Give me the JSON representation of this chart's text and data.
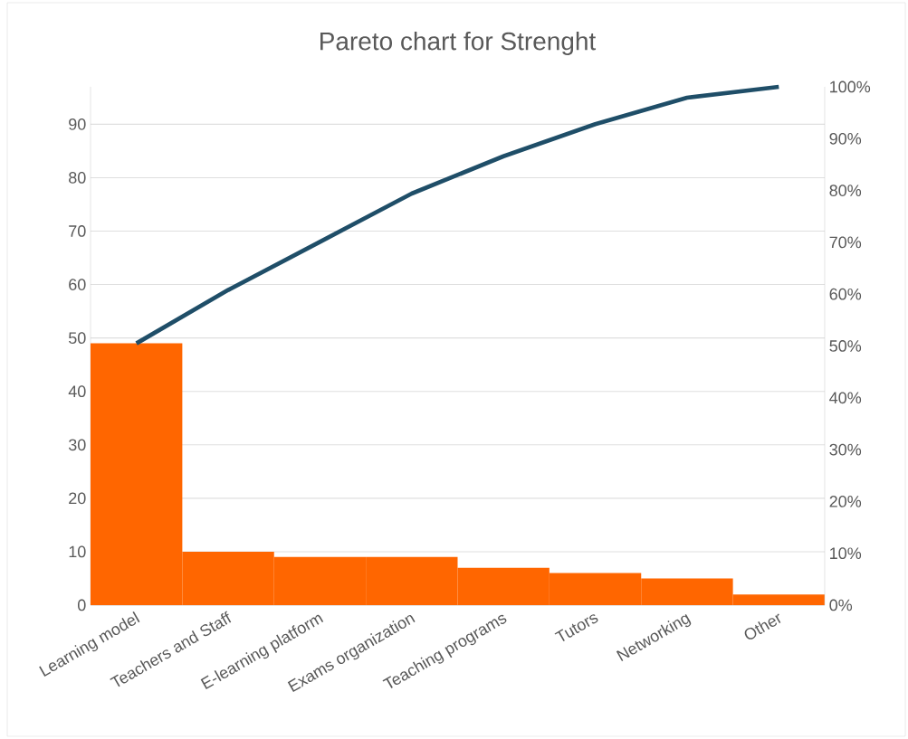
{
  "chart_data": {
    "type": "bar",
    "title": "Pareto chart for Strenght",
    "categories": [
      "Learning model",
      "Teachers and Staff",
      "E-learning platform",
      "Exams organization",
      "Teaching programs",
      "Tutors",
      "Networking",
      "Other"
    ],
    "series": [
      {
        "color": "#ff6600",
        "values": [
          49,
          10,
          9,
          9,
          7,
          6,
          5,
          2
        ]
      },
      {
        "type": "line",
        "axis": "y2",
        "color": "#1f4e68",
        "values": [
          50.5,
          60.8,
          70.1,
          79.4,
          86.6,
          92.8,
          97.9,
          100
        ]
      }
    ],
    "ylim": [
      0,
      97
    ],
    "yticks": [
      0,
      10,
      20,
      30,
      40,
      50,
      60,
      70,
      80,
      90
    ],
    "y2lim": [
      0,
      100
    ],
    "y2ticks": [
      {
        "value": 0,
        "label": "0%"
      },
      {
        "value": 10,
        "label": "10%"
      },
      {
        "value": 20,
        "label": "20%"
      },
      {
        "value": 30,
        "label": "30%"
      },
      {
        "value": 40,
        "label": "40%"
      },
      {
        "value": 50,
        "label": "50%"
      },
      {
        "value": 60,
        "label": "60%"
      },
      {
        "value": 70,
        "label": "70%"
      },
      {
        "value": 80,
        "label": "80%"
      },
      {
        "value": 90,
        "label": "90%"
      },
      {
        "value": 100,
        "label": "100%"
      }
    ],
    "grid": "y",
    "marker": "none"
  }
}
